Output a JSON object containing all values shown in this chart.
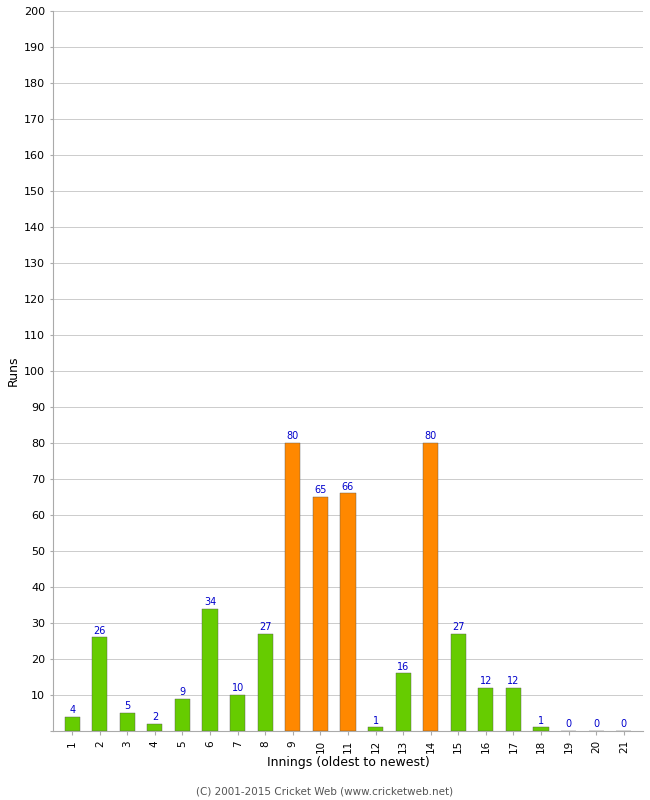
{
  "innings": [
    1,
    2,
    3,
    4,
    5,
    6,
    7,
    8,
    9,
    10,
    11,
    12,
    13,
    14,
    15,
    16,
    17,
    18,
    19,
    20,
    21
  ],
  "values": [
    4,
    26,
    5,
    2,
    9,
    34,
    10,
    27,
    80,
    65,
    66,
    1,
    16,
    80,
    27,
    12,
    12,
    1,
    0,
    0,
    0
  ],
  "colors": [
    "#66cc00",
    "#66cc00",
    "#66cc00",
    "#66cc00",
    "#66cc00",
    "#66cc00",
    "#66cc00",
    "#66cc00",
    "#ff8800",
    "#ff8800",
    "#ff8800",
    "#66cc00",
    "#66cc00",
    "#ff8800",
    "#66cc00",
    "#66cc00",
    "#66cc00",
    "#66cc00",
    "#66cc00",
    "#66cc00",
    "#66cc00"
  ],
  "ylabel": "Runs",
  "xlabel": "Innings (oldest to newest)",
  "ylim": [
    0,
    200
  ],
  "yticks": [
    0,
    10,
    20,
    30,
    40,
    50,
    60,
    70,
    80,
    90,
    100,
    110,
    120,
    130,
    140,
    150,
    160,
    170,
    180,
    190,
    200
  ],
  "label_color": "#0000cc",
  "bar_edge_color": "#555555",
  "background_color": "#ffffff",
  "grid_color": "#cccccc",
  "footer": "(C) 2001-2015 Cricket Web (www.cricketweb.net)",
  "bar_width": 0.55,
  "figwidth": 6.5,
  "figheight": 8.0,
  "dpi": 100
}
